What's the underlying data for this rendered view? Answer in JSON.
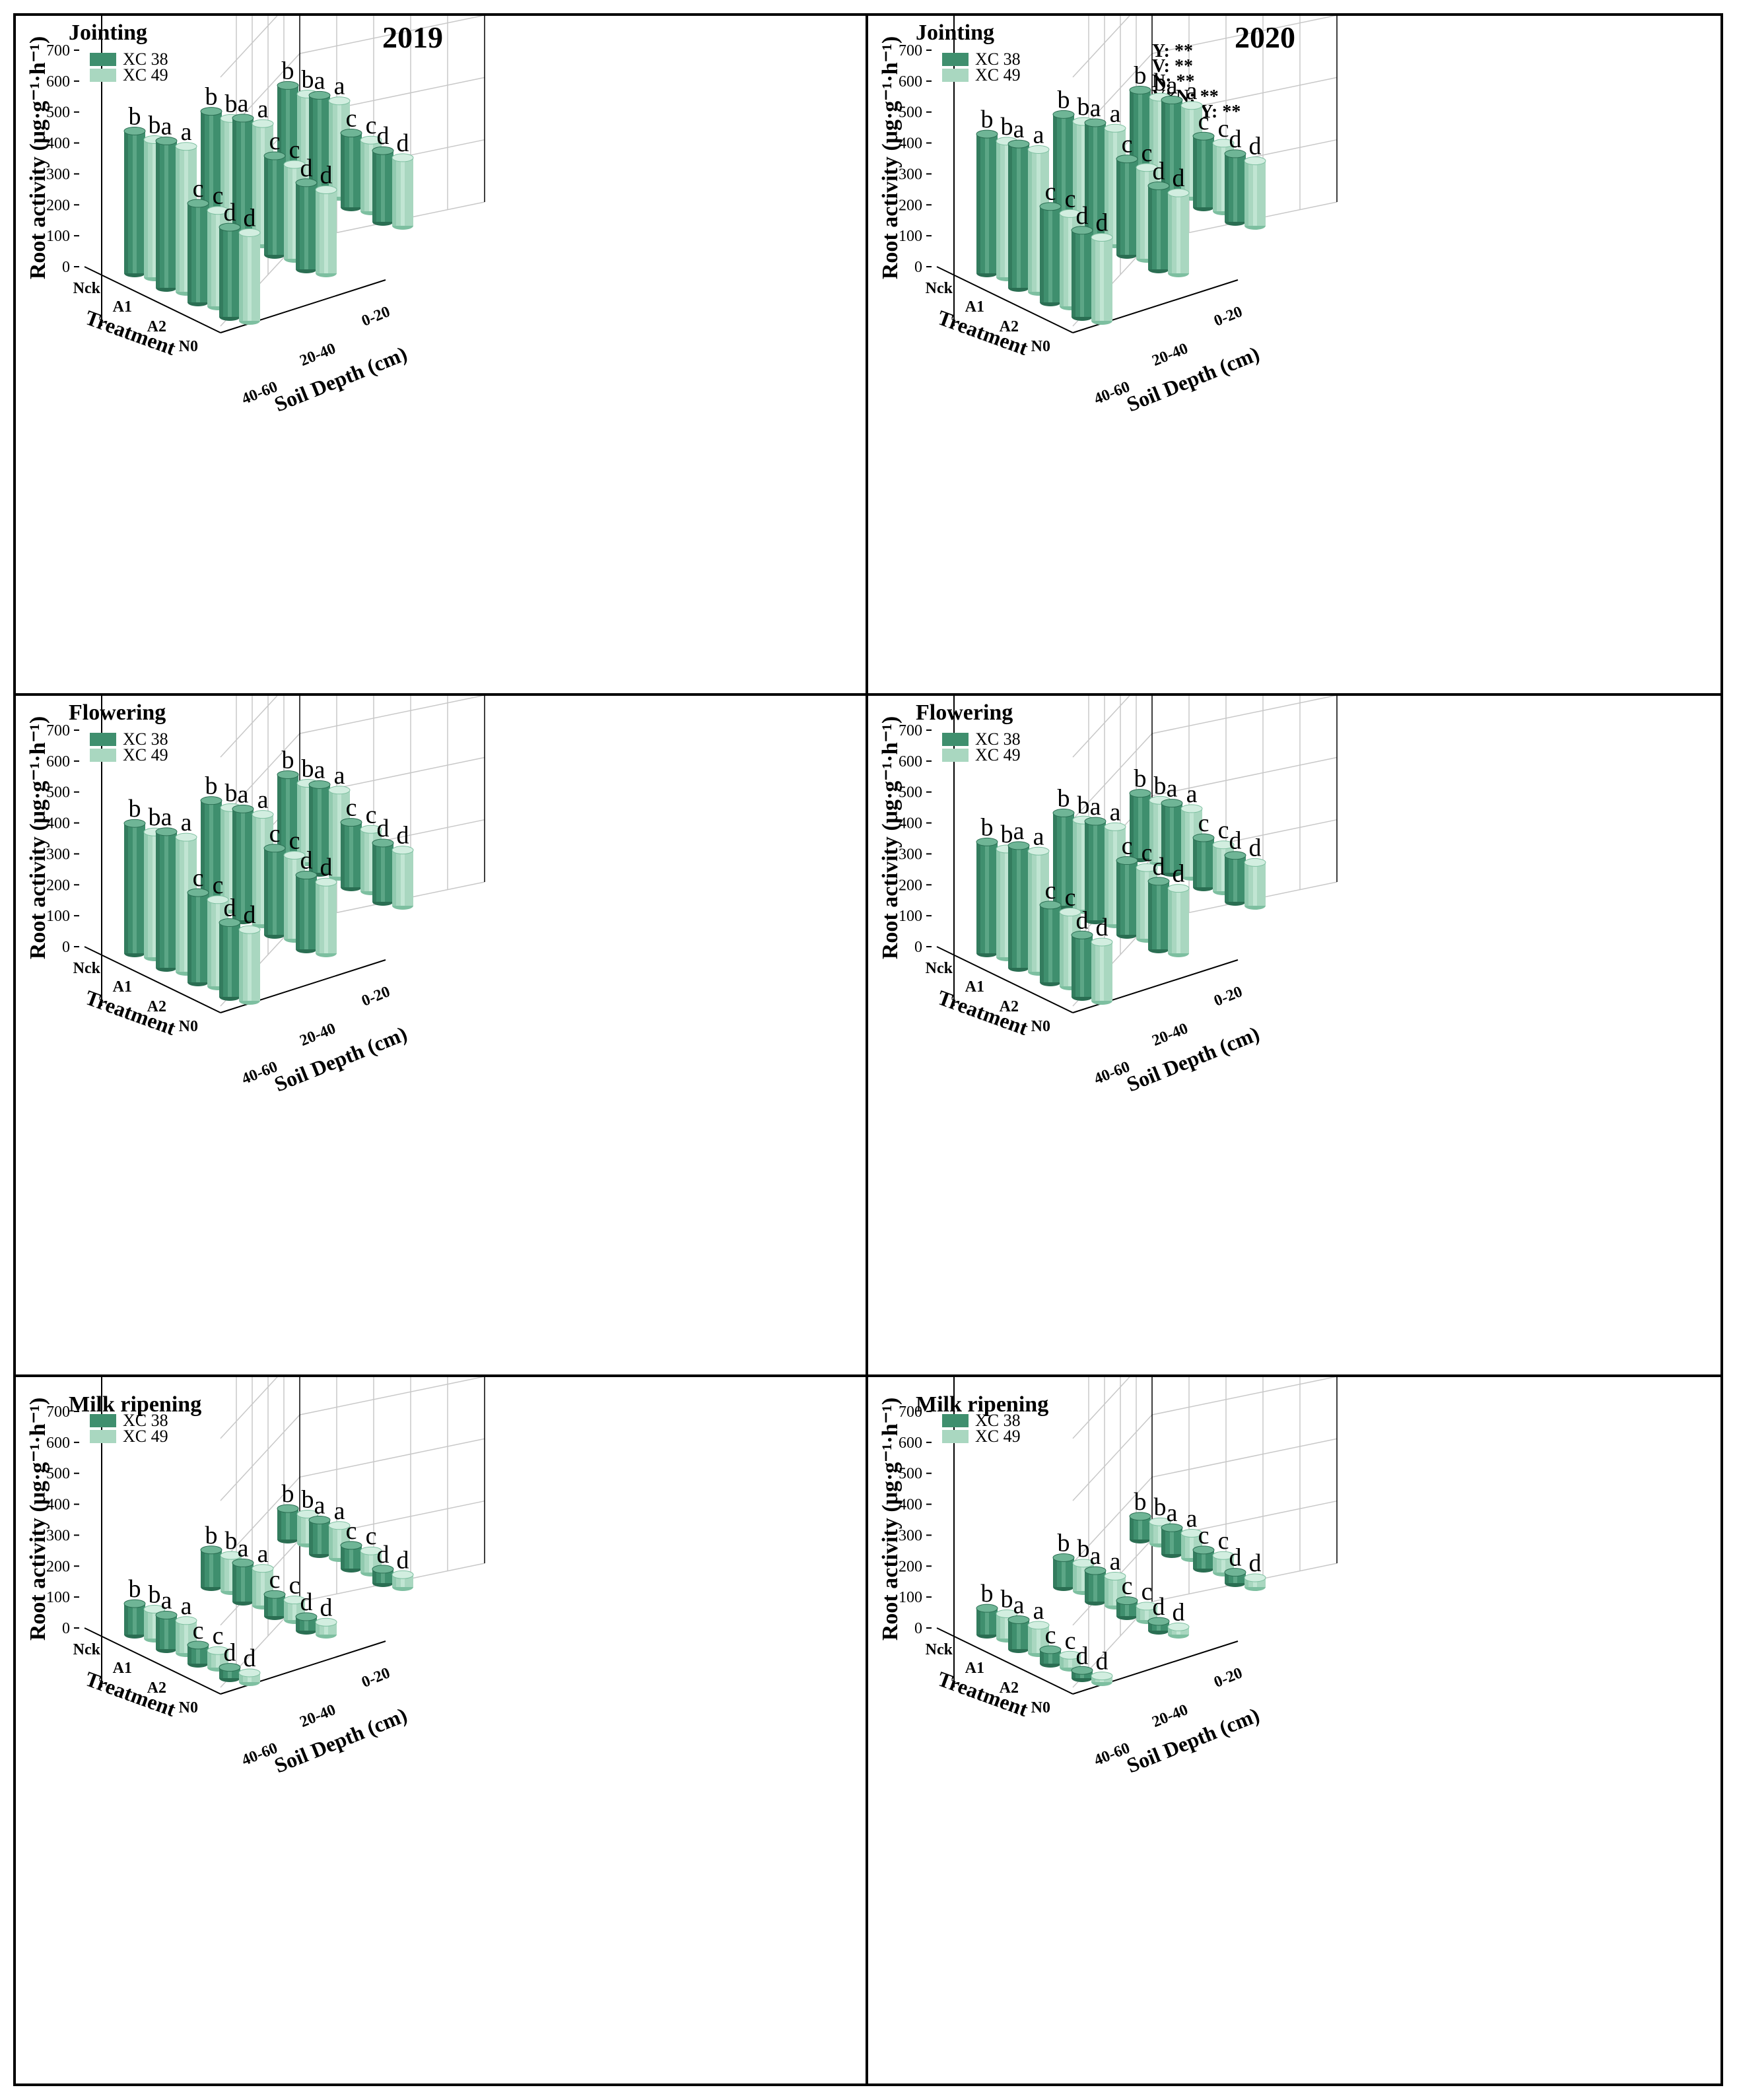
{
  "figure": {
    "colors": {
      "series1": "#3f8f6e",
      "series1_dark": "#2a6e52",
      "series1_light": "#6fb596",
      "series2": "#a9d7c0",
      "series2_dark": "#7dbfa0",
      "series2_light": "#d2eee0",
      "grid": "#c8c8c8",
      "axis": "#000000"
    }
  },
  "chart_data": [
    {
      "type": "bar3d",
      "title": "Jointing",
      "year": "2019",
      "ylabel": "Root activity (μg·g⁻¹·h⁻¹)",
      "treatment_label": "Treatment",
      "depth_label": "Soil Depth (cm)",
      "ylim": [
        0,
        700
      ],
      "yticks": [
        "0",
        "100",
        "200",
        "300",
        "400",
        "500",
        "600",
        "700"
      ],
      "treatments": [
        "Nck",
        "A1",
        "A2",
        "N0"
      ],
      "depths": [
        "0-20",
        "20-40",
        "40-60"
      ],
      "legend": [
        "XC 38",
        "XC 49"
      ],
      "stats": [],
      "bars": [
        {
          "t": 0,
          "d": 0,
          "v1": 460,
          "v2": 445,
          "l1": "b",
          "l2": "b"
        },
        {
          "t": 1,
          "d": 0,
          "v1": 475,
          "v2": 470,
          "l1": "a",
          "l2": "a"
        },
        {
          "t": 2,
          "d": 0,
          "v1": 320,
          "v2": 310,
          "l1": "c",
          "l2": "c"
        },
        {
          "t": 3,
          "d": 0,
          "v1": 290,
          "v2": 285,
          "l1": "d",
          "l2": "d"
        },
        {
          "t": 0,
          "d": 1,
          "v1": 370,
          "v2": 360,
          "l1": "b",
          "l2": "b"
        },
        {
          "t": 1,
          "d": 1,
          "v1": 395,
          "v2": 390,
          "l1": "a",
          "l2": "a"
        },
        {
          "t": 2,
          "d": 1,
          "v1": 320,
          "v2": 305,
          "l1": "c",
          "l2": "c"
        },
        {
          "t": 3,
          "d": 1,
          "v1": 280,
          "v2": 270,
          "l1": "d",
          "l2": "d"
        },
        {
          "t": 0,
          "d": 2,
          "v1": 300,
          "v2": 285,
          "l1": "b",
          "l2": "b"
        },
        {
          "t": 1,
          "d": 2,
          "v1": 315,
          "v2": 310,
          "l1": "a",
          "l2": "a"
        },
        {
          "t": 2,
          "d": 2,
          "v1": 240,
          "v2": 230,
          "l1": "c",
          "l2": "c"
        },
        {
          "t": 3,
          "d": 2,
          "v1": 230,
          "v2": 220,
          "l1": "d",
          "l2": "d"
        }
      ]
    },
    {
      "type": "bar3d",
      "title": "Jointing",
      "year": "2020",
      "ylabel": "Root activity (μg·g⁻¹·h⁻¹)",
      "treatment_label": "Treatment",
      "depth_label": "Soil Depth (cm)",
      "ylim": [
        0,
        700
      ],
      "yticks": [
        "0",
        "100",
        "200",
        "300",
        "400",
        "500",
        "600",
        "700"
      ],
      "treatments": [
        "Nck",
        "A1",
        "A2",
        "N0"
      ],
      "depths": [
        "0-20",
        "20-40",
        "40-60"
      ],
      "legend": [
        "XC 38",
        "XC 49"
      ],
      "stats": [
        "Y: **",
        "V: **",
        "N: **",
        "V×N: **",
        "V×N×Y: **"
      ],
      "bars": [
        {
          "t": 0,
          "d": 0,
          "v1": 450,
          "v2": 440,
          "l1": "b",
          "l2": "b"
        },
        {
          "t": 1,
          "d": 0,
          "v1": 465,
          "v2": 460,
          "l1": "a",
          "l2": "a"
        },
        {
          "t": 2,
          "d": 0,
          "v1": 310,
          "v2": 300,
          "l1": "c",
          "l2": "c"
        },
        {
          "t": 3,
          "d": 0,
          "v1": 280,
          "v2": 270,
          "l1": "d",
          "l2": "d"
        },
        {
          "t": 0,
          "d": 1,
          "v1": 360,
          "v2": 350,
          "l1": "b",
          "l2": "b"
        },
        {
          "t": 1,
          "d": 1,
          "v1": 380,
          "v2": 375,
          "l1": "a",
          "l2": "a"
        },
        {
          "t": 2,
          "d": 1,
          "v1": 310,
          "v2": 295,
          "l1": "c",
          "l2": "c"
        },
        {
          "t": 3,
          "d": 1,
          "v1": 270,
          "v2": 260,
          "l1": "d",
          "l2": "d"
        },
        {
          "t": 0,
          "d": 2,
          "v1": 285,
          "v2": 275,
          "l1": "b",
          "l2": "b"
        },
        {
          "t": 1,
          "d": 2,
          "v1": 300,
          "v2": 295,
          "l1": "a",
          "l2": "a"
        },
        {
          "t": 2,
          "d": 2,
          "v1": 230,
          "v2": 220,
          "l1": "c",
          "l2": "c"
        },
        {
          "t": 3,
          "d": 2,
          "v1": 220,
          "v2": 210,
          "l1": "d",
          "l2": "d"
        }
      ]
    },
    {
      "type": "bar3d",
      "title": "Flowering",
      "year": "",
      "ylabel": "Root activity (μg·g⁻¹·h⁻¹)",
      "treatment_label": "Treatment",
      "depth_label": "Soil Depth (cm)",
      "ylim": [
        0,
        700
      ],
      "yticks": [
        "0",
        "100",
        "200",
        "300",
        "400",
        "500",
        "600",
        "700"
      ],
      "treatments": [
        "Nck",
        "A1",
        "A2",
        "N0"
      ],
      "depths": [
        "0-20",
        "20-40",
        "40-60"
      ],
      "legend": [
        "XC 38",
        "XC 49"
      ],
      "stats": [],
      "bars": [
        {
          "t": 0,
          "d": 0,
          "v1": 420,
          "v2": 405,
          "l1": "b",
          "l2": "b"
        },
        {
          "t": 1,
          "d": 0,
          "v1": 440,
          "v2": 435,
          "l1": "a",
          "l2": "a"
        },
        {
          "t": 2,
          "d": 0,
          "v1": 290,
          "v2": 280,
          "l1": "c",
          "l2": "c"
        },
        {
          "t": 3,
          "d": 0,
          "v1": 240,
          "v2": 230,
          "l1": "d",
          "l2": "d"
        },
        {
          "t": 0,
          "d": 1,
          "v1": 340,
          "v2": 330,
          "l1": "b",
          "l2": "b"
        },
        {
          "t": 1,
          "d": 1,
          "v1": 360,
          "v2": 355,
          "l1": "a",
          "l2": "a"
        },
        {
          "t": 2,
          "d": 1,
          "v1": 280,
          "v2": 270,
          "l1": "c",
          "l2": "c"
        },
        {
          "t": 3,
          "d": 1,
          "v1": 240,
          "v2": 230,
          "l1": "d",
          "l2": "d"
        },
        {
          "t": 0,
          "d": 2,
          "v1": 270,
          "v2": 255,
          "l1": "b",
          "l2": "b"
        },
        {
          "t": 1,
          "d": 2,
          "v1": 285,
          "v2": 280,
          "l1": "a",
          "l2": "a"
        },
        {
          "t": 2,
          "d": 2,
          "v1": 210,
          "v2": 200,
          "l1": "c",
          "l2": "c"
        },
        {
          "t": 3,
          "d": 2,
          "v1": 190,
          "v2": 180,
          "l1": "d",
          "l2": "d"
        }
      ]
    },
    {
      "type": "bar3d",
      "title": "Flowering",
      "year": "",
      "ylabel": "Root activity (μg·g⁻¹·h⁻¹)",
      "treatment_label": "Treatment",
      "depth_label": "Soil Depth (cm)",
      "ylim": [
        0,
        700
      ],
      "yticks": [
        "0",
        "100",
        "200",
        "300",
        "400",
        "500",
        "600",
        "700"
      ],
      "treatments": [
        "Nck",
        "A1",
        "A2",
        "N0"
      ],
      "depths": [
        "0-20",
        "20-40",
        "40-60"
      ],
      "legend": [
        "XC 38",
        "XC 49"
      ],
      "stats": [],
      "bars": [
        {
          "t": 0,
          "d": 0,
          "v1": 360,
          "v2": 350,
          "l1": "b",
          "l2": "b"
        },
        {
          "t": 1,
          "d": 0,
          "v1": 395,
          "v2": 390,
          "l1": "a",
          "l2": "a"
        },
        {
          "t": 2,
          "d": 0,
          "v1": 250,
          "v2": 240,
          "l1": "c",
          "l2": "c"
        },
        {
          "t": 3,
          "d": 0,
          "v1": 200,
          "v2": 190,
          "l1": "d",
          "l2": "d"
        },
        {
          "t": 0,
          "d": 1,
          "v1": 300,
          "v2": 290,
          "l1": "b",
          "l2": "b"
        },
        {
          "t": 1,
          "d": 1,
          "v1": 320,
          "v2": 315,
          "l1": "a",
          "l2": "a"
        },
        {
          "t": 2,
          "d": 1,
          "v1": 240,
          "v2": 230,
          "l1": "c",
          "l2": "c"
        },
        {
          "t": 3,
          "d": 1,
          "v1": 220,
          "v2": 210,
          "l1": "d",
          "l2": "d"
        },
        {
          "t": 0,
          "d": 2,
          "v1": 210,
          "v2": 200,
          "l1": "b",
          "l2": "b"
        },
        {
          "t": 1,
          "d": 2,
          "v1": 225,
          "v2": 220,
          "l1": "a",
          "l2": "a"
        },
        {
          "t": 2,
          "d": 2,
          "v1": 160,
          "v2": 150,
          "l1": "c",
          "l2": "c"
        },
        {
          "t": 3,
          "d": 2,
          "v1": 150,
          "v2": 140,
          "l1": "d",
          "l2": "d"
        }
      ]
    },
    {
      "type": "bar3d",
      "title": "Milk ripening",
      "year": "",
      "ylabel": "Root activity (μg·g⁻¹·h⁻¹)",
      "treatment_label": "Treatment",
      "depth_label": "Soil Depth (cm)",
      "ylim": [
        0,
        700
      ],
      "yticks": [
        "0",
        "100",
        "200",
        "300",
        "400",
        "500",
        "600",
        "700"
      ],
      "treatments": [
        "Nck",
        "A1",
        "A2",
        "N0"
      ],
      "depths": [
        "0-20",
        "20-40",
        "40-60"
      ],
      "legend": [
        "XC 38",
        "XC 49"
      ],
      "stats": [],
      "bars": [
        {
          "t": 0,
          "d": 0,
          "v1": 100,
          "v2": 95,
          "l1": "b",
          "l2": "b"
        },
        {
          "t": 1,
          "d": 0,
          "v1": 110,
          "v2": 105,
          "l1": "a",
          "l2": "a"
        },
        {
          "t": 2,
          "d": 0,
          "v1": 60,
          "v2": 55,
          "l1": "c",
          "l2": "c"
        },
        {
          "t": 3,
          "d": 0,
          "v1": 35,
          "v2": 30,
          "l1": "d",
          "l2": "d"
        },
        {
          "t": 0,
          "d": 1,
          "v1": 120,
          "v2": 115,
          "l1": "b",
          "l2": "b"
        },
        {
          "t": 1,
          "d": 1,
          "v1": 125,
          "v2": 120,
          "l1": "a",
          "l2": "a"
        },
        {
          "t": 2,
          "d": 1,
          "v1": 70,
          "v2": 65,
          "l1": "c",
          "l2": "c"
        },
        {
          "t": 3,
          "d": 1,
          "v1": 45,
          "v2": 40,
          "l1": "d",
          "l2": "d"
        },
        {
          "t": 0,
          "d": 2,
          "v1": 100,
          "v2": 95,
          "l1": "b",
          "l2": "b"
        },
        {
          "t": 1,
          "d": 2,
          "v1": 110,
          "v2": 105,
          "l1": "a",
          "l2": "a"
        },
        {
          "t": 2,
          "d": 2,
          "v1": 75,
          "v2": 70,
          "l1": "c",
          "l2": "c"
        },
        {
          "t": 3,
          "d": 2,
          "v1": 45,
          "v2": 40,
          "l1": "d",
          "l2": "d"
        }
      ]
    },
    {
      "type": "bar3d",
      "title": "Milk ripening",
      "year": "",
      "ylabel": "Root activity (μg·g⁻¹·h⁻¹)",
      "treatment_label": "Treatment",
      "depth_label": "Soil Depth (cm)",
      "ylim": [
        0,
        700
      ],
      "yticks": [
        "0",
        "100",
        "200",
        "300",
        "400",
        "500",
        "600",
        "700"
      ],
      "treatments": [
        "Nck",
        "A1",
        "A2",
        "N0"
      ],
      "depths": [
        "0-20",
        "20-40",
        "40-60"
      ],
      "legend": [
        "XC 38",
        "XC 49"
      ],
      "stats": [],
      "bars": [
        {
          "t": 0,
          "d": 0,
          "v1": 85,
          "v2": 80,
          "l1": "b",
          "l2": "b"
        },
        {
          "t": 1,
          "d": 0,
          "v1": 95,
          "v2": 90,
          "l1": "a",
          "l2": "a"
        },
        {
          "t": 2,
          "d": 0,
          "v1": 45,
          "v2": 40,
          "l1": "c",
          "l2": "c"
        },
        {
          "t": 3,
          "d": 0,
          "v1": 25,
          "v2": 20,
          "l1": "d",
          "l2": "d"
        },
        {
          "t": 0,
          "d": 1,
          "v1": 95,
          "v2": 90,
          "l1": "b",
          "l2": "b"
        },
        {
          "t": 1,
          "d": 1,
          "v1": 100,
          "v2": 95,
          "l1": "a",
          "l2": "a"
        },
        {
          "t": 2,
          "d": 1,
          "v1": 50,
          "v2": 45,
          "l1": "c",
          "l2": "c"
        },
        {
          "t": 3,
          "d": 1,
          "v1": 30,
          "v2": 25,
          "l1": "d",
          "l2": "d"
        },
        {
          "t": 0,
          "d": 2,
          "v1": 75,
          "v2": 70,
          "l1": "b",
          "l2": "b"
        },
        {
          "t": 1,
          "d": 2,
          "v1": 85,
          "v2": 80,
          "l1": "a",
          "l2": "a"
        },
        {
          "t": 2,
          "d": 2,
          "v1": 60,
          "v2": 55,
          "l1": "c",
          "l2": "c"
        },
        {
          "t": 3,
          "d": 2,
          "v1": 35,
          "v2": 30,
          "l1": "d",
          "l2": "d"
        }
      ]
    }
  ]
}
